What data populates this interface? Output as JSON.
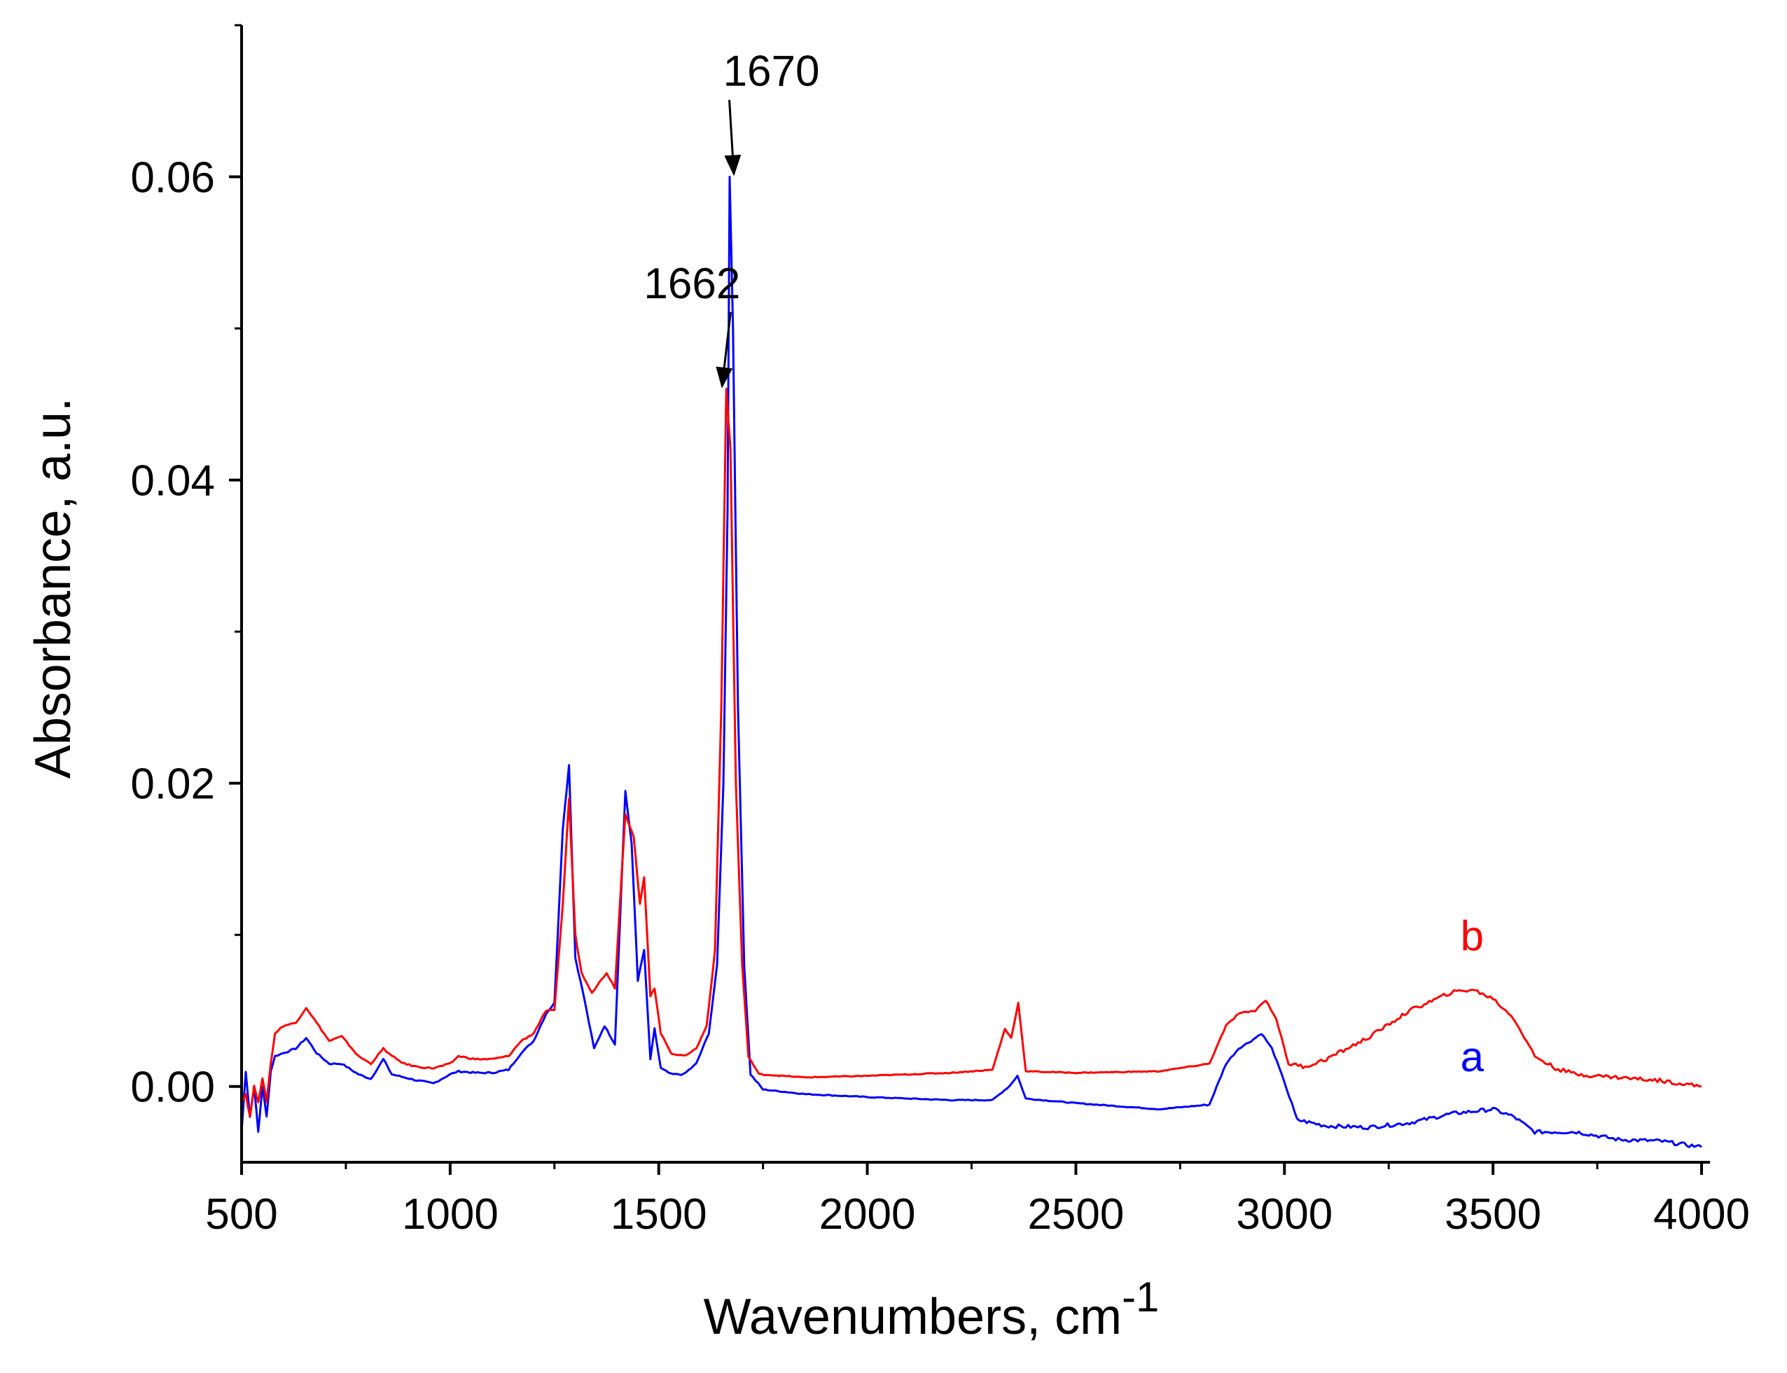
{
  "chart_data": {
    "type": "line",
    "title": "",
    "xlabel": "Wavenumbers, cm",
    "xlabel_superscript": "-1",
    "ylabel": "Absorbance, a.u.",
    "xlim": [
      500,
      4000
    ],
    "ylim": [
      -0.005,
      0.07
    ],
    "x_ticks": [
      500,
      1000,
      1500,
      2000,
      2500,
      3000,
      3500,
      4000
    ],
    "x_tick_labels": [
      "500",
      "1000",
      "1500",
      "2000",
      "2500",
      "3000",
      "3500",
      "4000"
    ],
    "y_ticks": [
      0.0,
      0.02,
      0.04,
      0.06
    ],
    "y_tick_labels": [
      "0.00",
      "0.02",
      "0.04",
      "0.06"
    ],
    "grid": false,
    "series": [
      {
        "name": "a",
        "color": "#0000ff",
        "points": [
          [
            500,
            -0.003
          ],
          [
            510,
            0.001
          ],
          [
            520,
            -0.002
          ],
          [
            530,
            0.0
          ],
          [
            540,
            -0.003
          ],
          [
            550,
            0.0
          ],
          [
            560,
            -0.002
          ],
          [
            570,
            0.001
          ],
          [
            580,
            0.002
          ],
          [
            600,
            0.0022
          ],
          [
            630,
            0.0025
          ],
          [
            655,
            0.0032
          ],
          [
            680,
            0.0022
          ],
          [
            710,
            0.0015
          ],
          [
            740,
            0.0015
          ],
          [
            780,
            0.0008
          ],
          [
            810,
            0.0005
          ],
          [
            840,
            0.0018
          ],
          [
            860,
            0.0008
          ],
          [
            890,
            0.0006
          ],
          [
            920,
            0.0004
          ],
          [
            960,
            0.0002
          ],
          [
            1000,
            0.0008
          ],
          [
            1020,
            0.001
          ],
          [
            1060,
            0.0009
          ],
          [
            1100,
            0.0009
          ],
          [
            1140,
            0.0011
          ],
          [
            1170,
            0.0022
          ],
          [
            1200,
            0.003
          ],
          [
            1230,
            0.0048
          ],
          [
            1250,
            0.0055
          ],
          [
            1270,
            0.017
          ],
          [
            1285,
            0.0212
          ],
          [
            1300,
            0.0085
          ],
          [
            1320,
            0.006
          ],
          [
            1345,
            0.0025
          ],
          [
            1370,
            0.004
          ],
          [
            1395,
            0.0028
          ],
          [
            1420,
            0.0195
          ],
          [
            1435,
            0.016
          ],
          [
            1450,
            0.007
          ],
          [
            1465,
            0.009
          ],
          [
            1480,
            0.0018
          ],
          [
            1490,
            0.0038
          ],
          [
            1505,
            0.0012
          ],
          [
            1530,
            0.0008
          ],
          [
            1560,
            0.0008
          ],
          [
            1590,
            0.0015
          ],
          [
            1620,
            0.0035
          ],
          [
            1640,
            0.008
          ],
          [
            1655,
            0.02
          ],
          [
            1665,
            0.038
          ],
          [
            1670,
            0.06
          ],
          [
            1678,
            0.05
          ],
          [
            1690,
            0.025
          ],
          [
            1705,
            0.008
          ],
          [
            1720,
            0.0008
          ],
          [
            1750,
            -0.0002
          ],
          [
            1850,
            -0.0005
          ],
          [
            2000,
            -0.0007
          ],
          [
            2200,
            -0.0009
          ],
          [
            2300,
            -0.0009
          ],
          [
            2340,
            0.0
          ],
          [
            2360,
            0.0007
          ],
          [
            2380,
            -0.0008
          ],
          [
            2500,
            -0.0011
          ],
          [
            2700,
            -0.0015
          ],
          [
            2820,
            -0.0012
          ],
          [
            2860,
            0.0015
          ],
          [
            2890,
            0.0025
          ],
          [
            2920,
            0.003
          ],
          [
            2945,
            0.0035
          ],
          [
            2970,
            0.0025
          ],
          [
            3000,
            0.0003
          ],
          [
            3030,
            -0.0022
          ],
          [
            3100,
            -0.0026
          ],
          [
            3200,
            -0.0027
          ],
          [
            3300,
            -0.0024
          ],
          [
            3400,
            -0.0018
          ],
          [
            3500,
            -0.0015
          ],
          [
            3550,
            -0.002
          ],
          [
            3600,
            -0.003
          ],
          [
            3700,
            -0.003
          ],
          [
            3800,
            -0.0035
          ],
          [
            3900,
            -0.0036
          ],
          [
            4000,
            -0.004
          ]
        ]
      },
      {
        "name": "b",
        "color": "#ff0000",
        "points": [
          [
            500,
            -0.001
          ],
          [
            510,
            -0.0005
          ],
          [
            520,
            -0.002
          ],
          [
            530,
            0.0
          ],
          [
            540,
            -0.001
          ],
          [
            550,
            0.0005
          ],
          [
            560,
            -0.001
          ],
          [
            570,
            0.0015
          ],
          [
            580,
            0.0035
          ],
          [
            600,
            0.004
          ],
          [
            630,
            0.0042
          ],
          [
            655,
            0.0052
          ],
          [
            680,
            0.0042
          ],
          [
            710,
            0.003
          ],
          [
            740,
            0.0033
          ],
          [
            780,
            0.002
          ],
          [
            810,
            0.0015
          ],
          [
            840,
            0.0025
          ],
          [
            860,
            0.002
          ],
          [
            890,
            0.0015
          ],
          [
            920,
            0.0013
          ],
          [
            960,
            0.0012
          ],
          [
            1000,
            0.0015
          ],
          [
            1020,
            0.002
          ],
          [
            1060,
            0.0018
          ],
          [
            1100,
            0.0018
          ],
          [
            1140,
            0.002
          ],
          [
            1170,
            0.003
          ],
          [
            1200,
            0.0035
          ],
          [
            1230,
            0.005
          ],
          [
            1250,
            0.005
          ],
          [
            1270,
            0.012
          ],
          [
            1285,
            0.019
          ],
          [
            1300,
            0.01
          ],
          [
            1315,
            0.0075
          ],
          [
            1340,
            0.0062
          ],
          [
            1375,
            0.0075
          ],
          [
            1395,
            0.0065
          ],
          [
            1420,
            0.018
          ],
          [
            1440,
            0.0165
          ],
          [
            1455,
            0.012
          ],
          [
            1465,
            0.0138
          ],
          [
            1480,
            0.006
          ],
          [
            1490,
            0.0065
          ],
          [
            1505,
            0.0035
          ],
          [
            1530,
            0.0022
          ],
          [
            1560,
            0.002
          ],
          [
            1590,
            0.0025
          ],
          [
            1615,
            0.004
          ],
          [
            1635,
            0.009
          ],
          [
            1650,
            0.025
          ],
          [
            1662,
            0.046
          ],
          [
            1672,
            0.042
          ],
          [
            1685,
            0.02
          ],
          [
            1700,
            0.008
          ],
          [
            1715,
            0.002
          ],
          [
            1740,
            0.0008
          ],
          [
            1850,
            0.0006
          ],
          [
            2000,
            0.0007
          ],
          [
            2200,
            0.0009
          ],
          [
            2300,
            0.0011
          ],
          [
            2330,
            0.0038
          ],
          [
            2345,
            0.0032
          ],
          [
            2362,
            0.0055
          ],
          [
            2380,
            0.001
          ],
          [
            2500,
            0.0009
          ],
          [
            2700,
            0.001
          ],
          [
            2820,
            0.0015
          ],
          [
            2860,
            0.004
          ],
          [
            2890,
            0.0048
          ],
          [
            2930,
            0.005
          ],
          [
            2955,
            0.0057
          ],
          [
            2980,
            0.0045
          ],
          [
            3010,
            0.0015
          ],
          [
            3050,
            0.0013
          ],
          [
            3100,
            0.0018
          ],
          [
            3200,
            0.0032
          ],
          [
            3300,
            0.005
          ],
          [
            3400,
            0.0062
          ],
          [
            3450,
            0.0064
          ],
          [
            3500,
            0.0058
          ],
          [
            3550,
            0.0045
          ],
          [
            3600,
            0.002
          ],
          [
            3650,
            0.0012
          ],
          [
            3700,
            0.0008
          ],
          [
            3800,
            0.0006
          ],
          [
            3900,
            0.0004
          ],
          [
            4000,
            0.0
          ]
        ]
      }
    ],
    "series_labels": [
      {
        "text": "a",
        "x": 3450,
        "y": 0.001,
        "color": "#0000ff"
      },
      {
        "text": "b",
        "x": 3450,
        "y": 0.009,
        "color": "#ff0000"
      }
    ],
    "annotations": [
      {
        "text": "1662",
        "x": 1662,
        "y": 0.046,
        "text_x": 1580,
        "text_y": 0.052
      },
      {
        "text": "1670",
        "x": 1670,
        "y": 0.06,
        "text_x": 1770,
        "text_y": 0.066
      }
    ]
  }
}
